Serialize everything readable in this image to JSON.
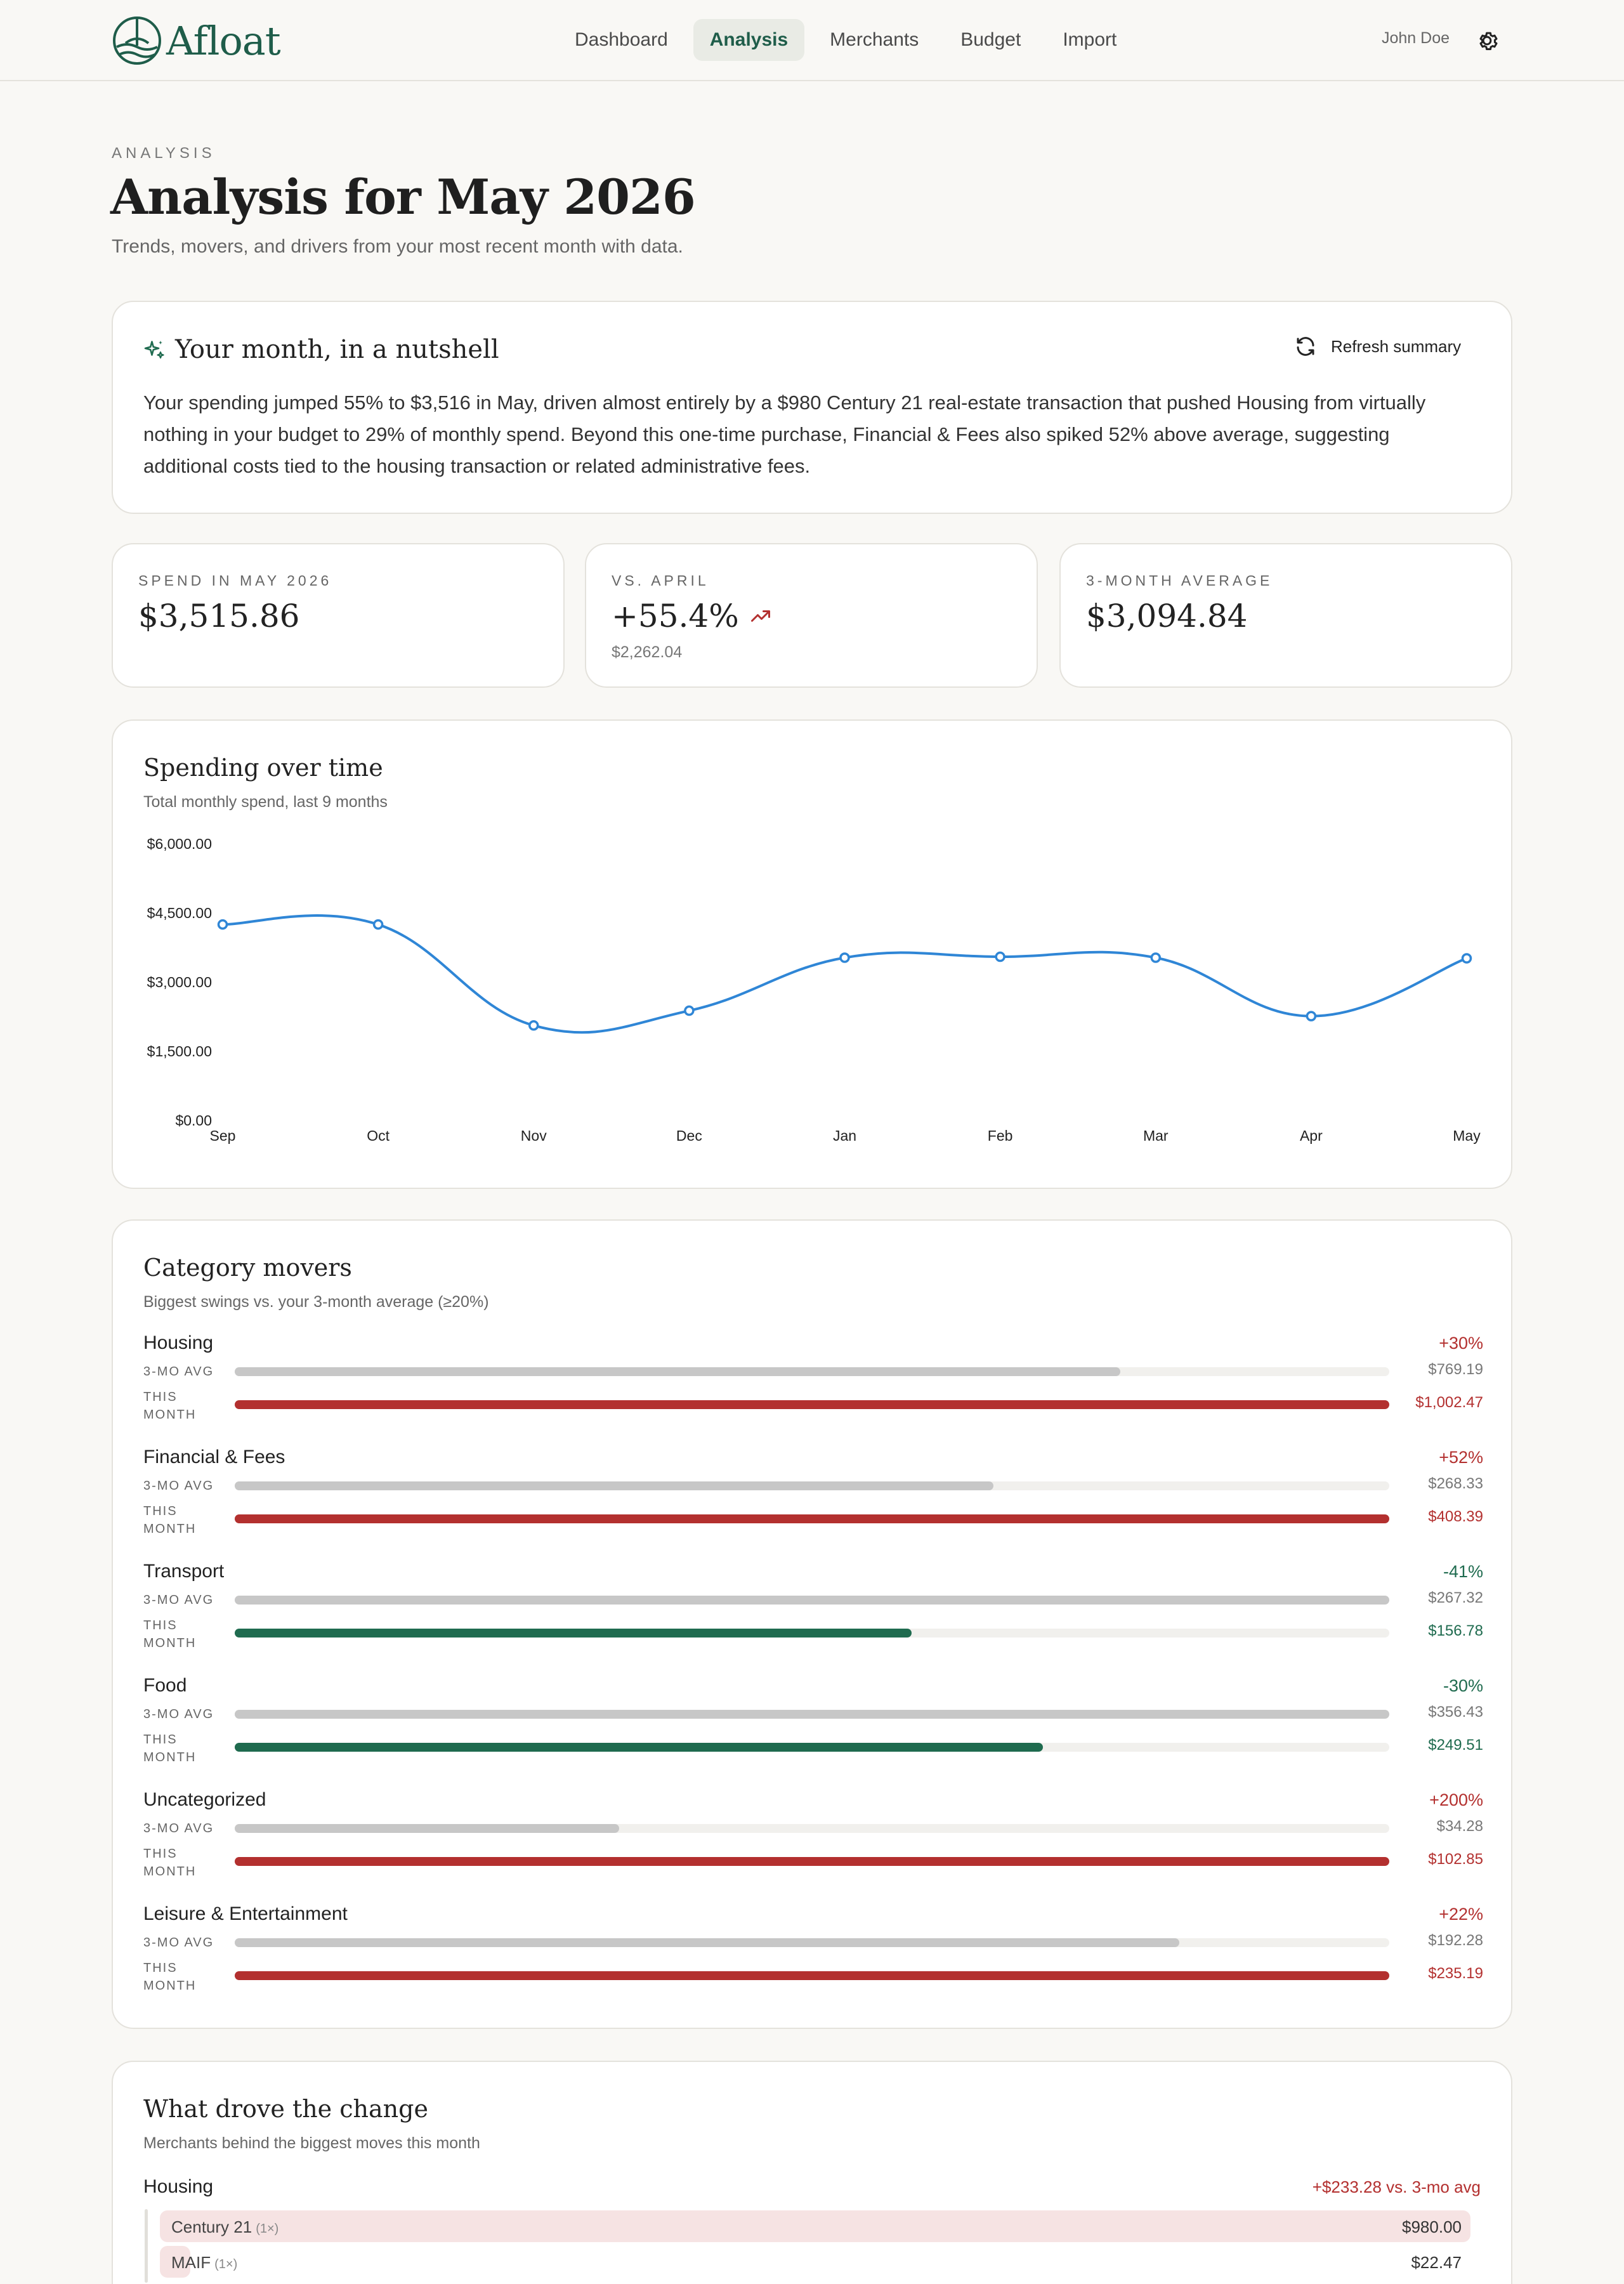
{
  "app": {
    "name": "Afloat"
  },
  "nav": [
    {
      "label": "Dashboard",
      "active": false
    },
    {
      "label": "Analysis",
      "active": true
    },
    {
      "label": "Merchants",
      "active": false
    },
    {
      "label": "Budget",
      "active": false
    },
    {
      "label": "Import",
      "active": false
    }
  ],
  "user": {
    "name": "John Doe"
  },
  "page": {
    "eyebrow": "ANALYSIS",
    "title": "Analysis for May 2026",
    "subtitle": "Trends, movers, and drivers from your most recent month with data."
  },
  "summary": {
    "title": "Your month, in a nutshell",
    "refresh_label": "Refresh summary",
    "body": "Your spending jumped 55% to $3,516 in May, driven almost entirely by a $980 Century 21 real-estate transaction that pushed Housing from virtually nothing in your budget to 29% of monthly spend. Beyond this one-time purchase, Financial & Fees also spiked 52% above average, suggesting additional costs tied to the housing transaction or related administrative fees."
  },
  "stats": {
    "spend": {
      "label": "SPEND IN MAY 2026",
      "value": "$3,515.86"
    },
    "vs": {
      "label": "VS. APRIL",
      "value": "+55.4%",
      "sub": "$2,262.04"
    },
    "avg": {
      "label": "3-MONTH AVERAGE",
      "value": "$3,094.84"
    }
  },
  "chart": {
    "title": "Spending over time",
    "subtitle": "Total monthly spend, last 9 months"
  },
  "chart_data": {
    "type": "line",
    "categories": [
      "Sep",
      "Oct",
      "Nov",
      "Dec",
      "Jan",
      "Feb",
      "Mar",
      "Apr",
      "May"
    ],
    "series": [
      {
        "values": [
          4250,
          4250,
          2060,
          2380,
          3530,
          3550,
          3530,
          2262.04,
          3515.86
        ]
      }
    ],
    "ylim": [
      0,
      6000
    ],
    "yticks": [
      "$0.00",
      "$1,500.00",
      "$3,000.00",
      "$4,500.00",
      "$6,000.00"
    ],
    "xlabel": "",
    "ylabel": "",
    "color": "#2f86d6",
    "grid": false
  },
  "movers": {
    "title": "Category movers",
    "subtitle": "Biggest swings vs. your 3-month average (≥20%)",
    "avg_label": "3-MO AVG",
    "this_label_1": "THIS",
    "this_label_2": "MONTH",
    "items": [
      {
        "name": "Housing",
        "pct": "+30%",
        "dir": "up",
        "avg": "$769.19",
        "cur": "$1,002.47",
        "avg_frac": 0.767,
        "cur_frac": 1.0
      },
      {
        "name": "Financial & Fees",
        "pct": "+52%",
        "dir": "up",
        "avg": "$268.33",
        "cur": "$408.39",
        "avg_frac": 0.657,
        "cur_frac": 1.0
      },
      {
        "name": "Transport",
        "pct": "-41%",
        "dir": "down",
        "avg": "$267.32",
        "cur": "$156.78",
        "avg_frac": 1.0,
        "cur_frac": 0.586
      },
      {
        "name": "Food",
        "pct": "-30%",
        "dir": "down",
        "avg": "$356.43",
        "cur": "$249.51",
        "avg_frac": 1.0,
        "cur_frac": 0.7
      },
      {
        "name": "Uncategorized",
        "pct": "+200%",
        "dir": "up",
        "avg": "$34.28",
        "cur": "$102.85",
        "avg_frac": 0.333,
        "cur_frac": 1.0
      },
      {
        "name": "Leisure & Entertainment",
        "pct": "+22%",
        "dir": "up",
        "avg": "$192.28",
        "cur": "$235.19",
        "avg_frac": 0.818,
        "cur_frac": 1.0
      }
    ]
  },
  "drivers": {
    "title": "What drove the change",
    "subtitle": "Merchants behind the biggest moves this month",
    "category": "Housing",
    "delta": "+$233.28 vs. 3-mo avg",
    "merchants": [
      {
        "name": "Century 21",
        "count": "(1×)",
        "amount": "$980.00",
        "frac": 1.0
      },
      {
        "name": "MAIF",
        "count": "(1×)",
        "amount": "$22.47",
        "frac": 0.023
      }
    ]
  },
  "colors": {
    "brand": "#1f5d4a",
    "up": "#b3302f",
    "down": "#1f6b4f",
    "line": "#2f86d6"
  }
}
